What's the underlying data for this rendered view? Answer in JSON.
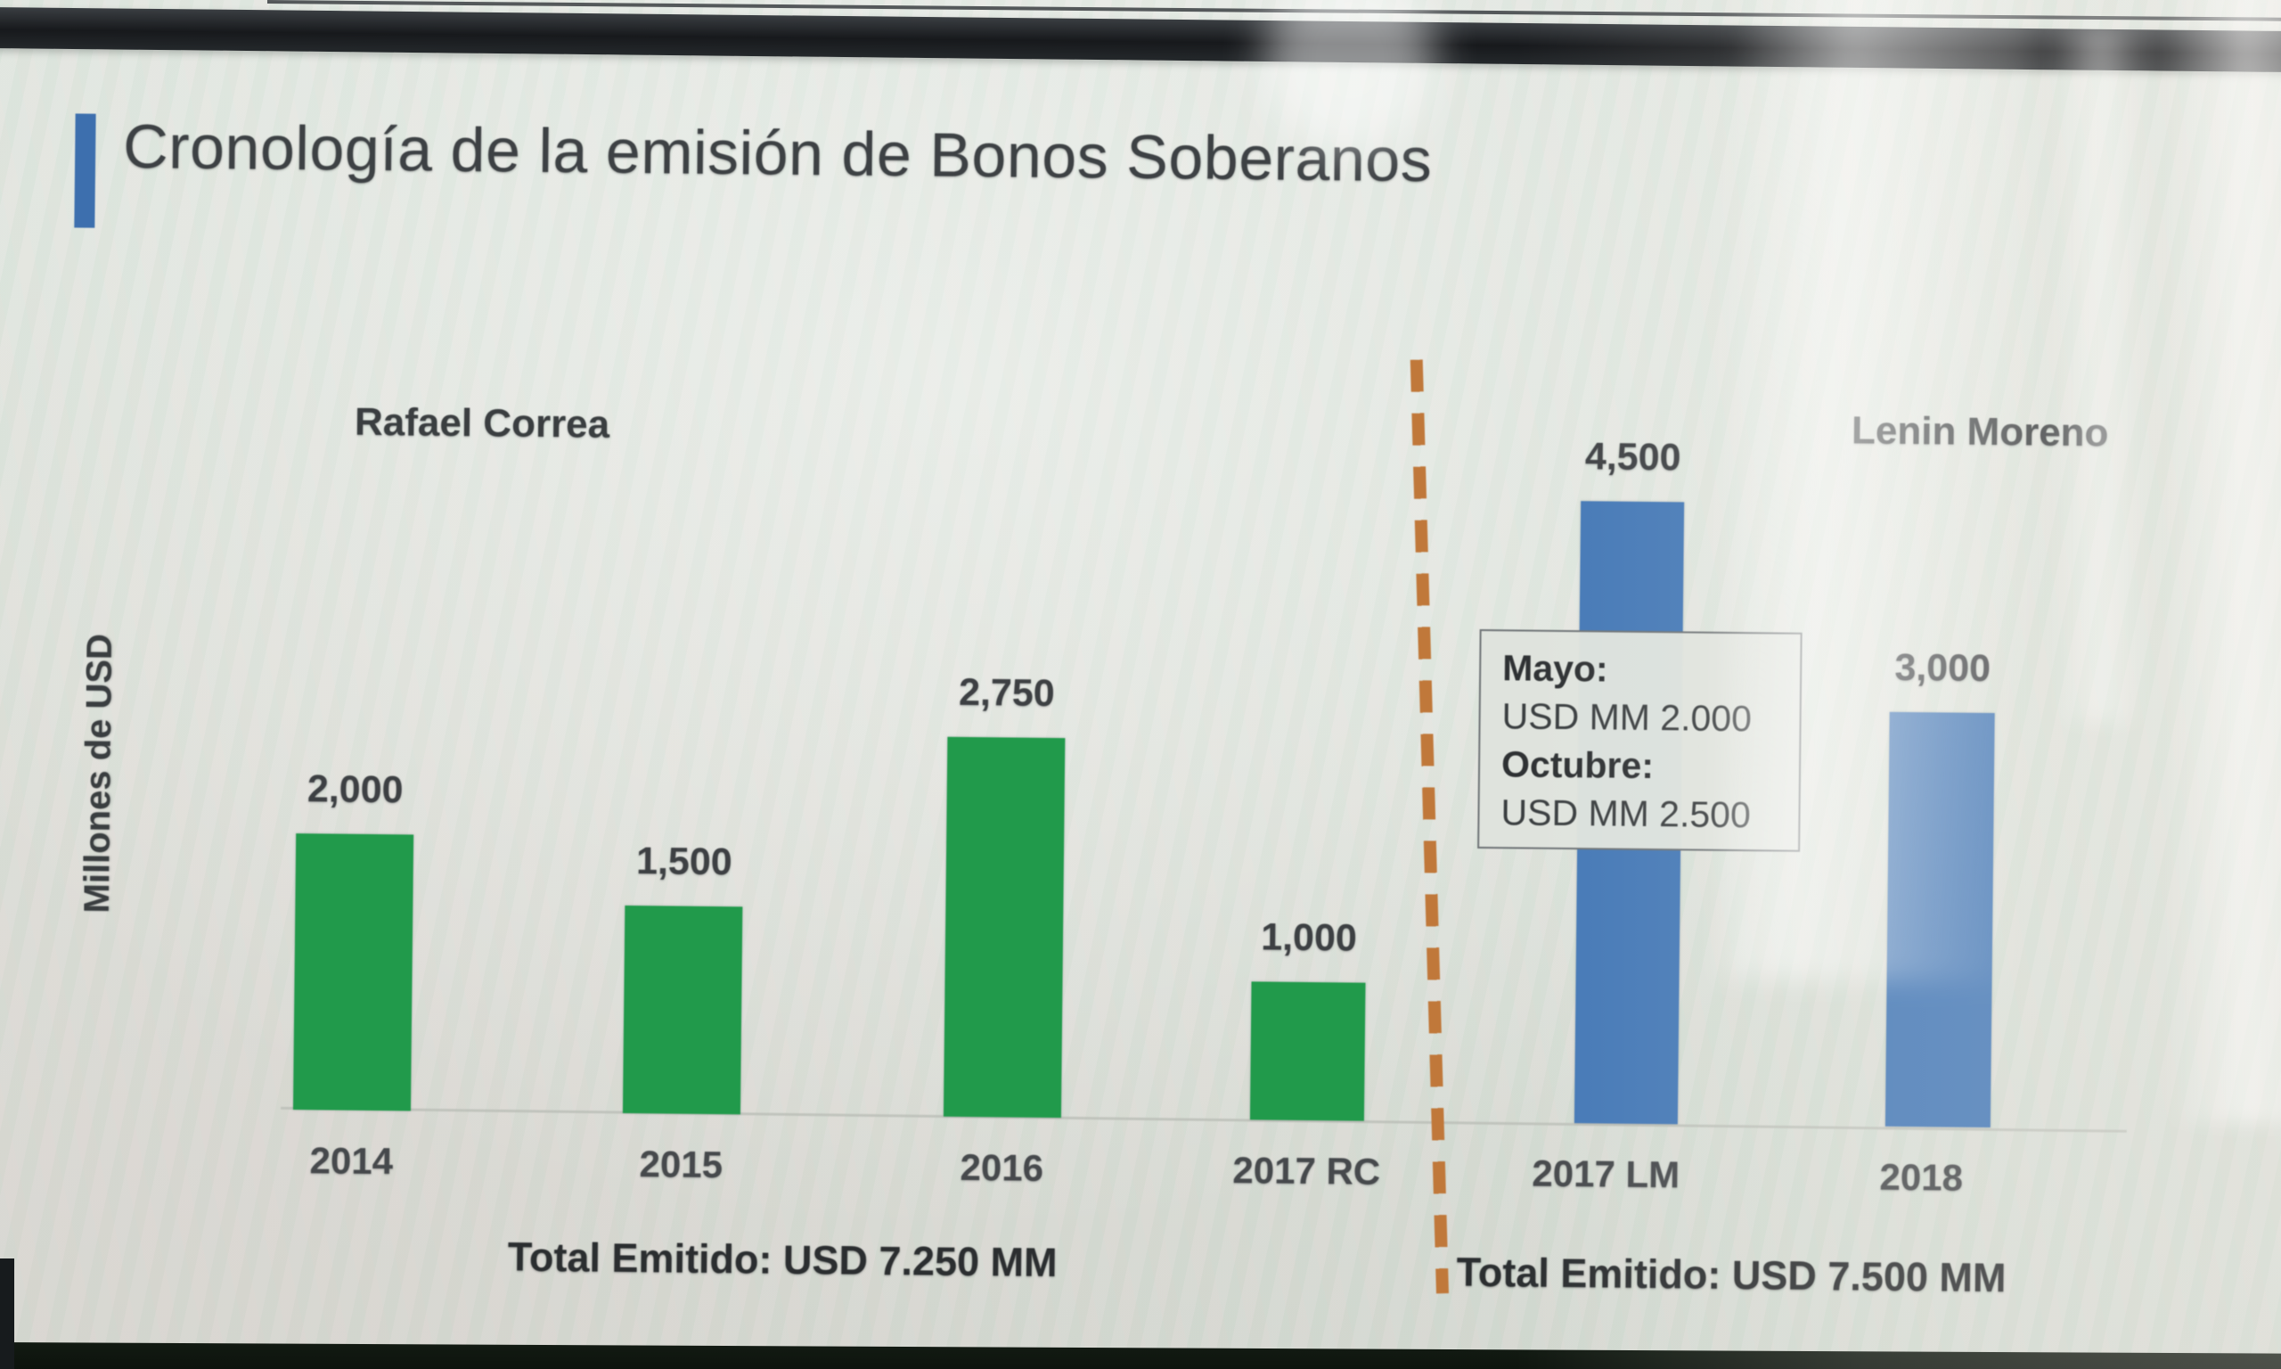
{
  "slide": {
    "title": "Cronología de la emisión de Bonos Soberanos",
    "y_axis_label": "Millones de USD",
    "era_left": {
      "label": "Rafael Correa",
      "total": "Total Emitido: USD 7.250 MM"
    },
    "era_right": {
      "label": "Lenin Moreno",
      "total": "Total Emitido: USD 7.500 MM"
    },
    "callout": {
      "line1_label": "Mayo:",
      "line1_value": "USD MM 2.000",
      "line2_label": "Octubre:",
      "line2_value": "USD MM 2.500"
    }
  },
  "chart_data": {
    "type": "bar",
    "title": "Cronología de la emisión de Bonos Soberanos",
    "xlabel": "",
    "ylabel": "Millones de USD",
    "categories": [
      "2014",
      "2015",
      "2016",
      "2017 RC",
      "2017 LM",
      "2018"
    ],
    "values": [
      2000,
      1500,
      2750,
      1000,
      4500,
      3000
    ],
    "value_labels": [
      "2,000",
      "1,500",
      "2,750",
      "1,000",
      "4,500",
      "3,000"
    ],
    "ylim": [
      0,
      4500
    ],
    "grid": false,
    "legend_position": "none",
    "series": [
      {
        "name": "Rafael Correa",
        "color": "#219a4b",
        "categories": [
          "2014",
          "2015",
          "2016",
          "2017 RC"
        ],
        "values": [
          2000,
          1500,
          2750,
          1000
        ],
        "total_label": "Total Emitido: USD 7.250 MM"
      },
      {
        "name": "Lenin Moreno",
        "color": "#4478b6",
        "categories": [
          "2017 LM",
          "2018"
        ],
        "values": [
          4500,
          3000
        ],
        "total_label": "Total Emitido: USD 7.500 MM"
      }
    ],
    "annotations": [
      {
        "text": "Mayo: USD MM 2.000",
        "target": "2017 LM"
      },
      {
        "text": "Octubre: USD MM 2.500",
        "target": "2017 LM"
      }
    ],
    "separator": {
      "style": "dashed-vertical",
      "color": "#c0783a",
      "between": [
        "2017 RC",
        "2017 LM"
      ]
    }
  },
  "colors": {
    "bar_green": "#219a4b",
    "bar_blue": "#4478b6",
    "separator_orange": "#c0783a",
    "title_accent_blue": "#3d6fae"
  }
}
